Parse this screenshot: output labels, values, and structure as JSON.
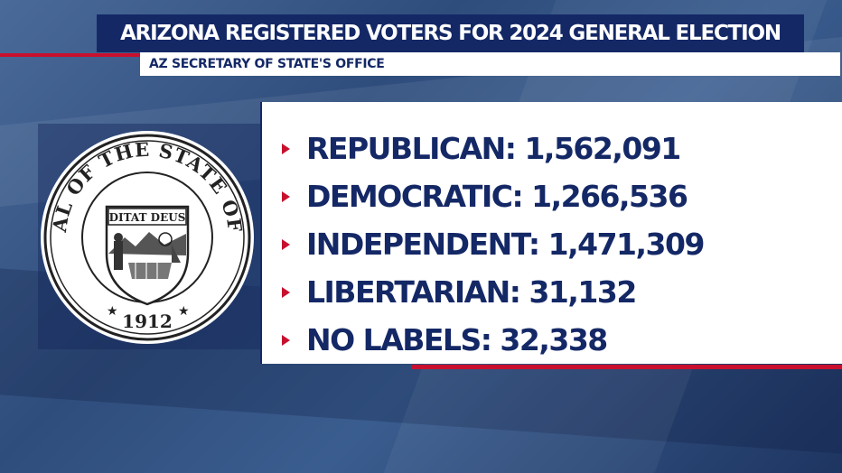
{
  "header": {
    "title": "ARIZONA REGISTERED VOTERS FOR 2024 GENERAL ELECTION",
    "source": "AZ SECRETARY OF STATE'S OFFICE"
  },
  "seal": {
    "ring_text": "GREAT SEAL OF THE STATE OF ARIZONA",
    "motto": "DITAT DEUS",
    "year": "1912"
  },
  "voters": [
    {
      "label": "REPUBLICAN: 1,562,091"
    },
    {
      "label": "DEMOCRATIC: 1,266,536"
    },
    {
      "label": "INDEPENDENT: 1,471,309"
    },
    {
      "label": "LIBERTARIAN: 31,132"
    },
    {
      "label": "NO LABELS: 32,338"
    }
  ],
  "colors": {
    "navy": "#142866",
    "accent_red": "#c8102e",
    "panel": "#ffffff"
  }
}
